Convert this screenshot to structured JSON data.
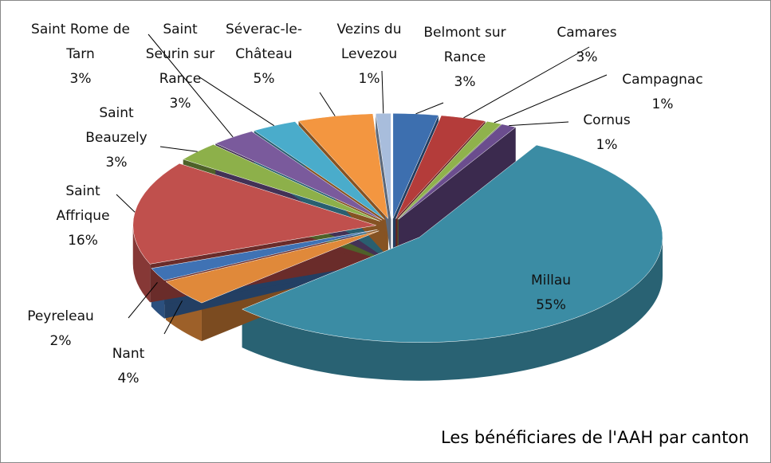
{
  "chart_data": {
    "type": "pie",
    "title": "Les bénéficiares de l'AAH par canton",
    "categories": [
      "Belmont sur Rance",
      "Camares",
      "Campagnac",
      "Cornus",
      "Millau",
      "Nant",
      "Peyreleau",
      "Saint Affrique",
      "Saint Beauzely",
      "Saint Rome de Tarn",
      "Saint Seurin sur Rance",
      "Séverac-le-Château",
      "Vezins du Levezou"
    ],
    "values": [
      3,
      3,
      1,
      1,
      55,
      4,
      2,
      16,
      3,
      3,
      3,
      5,
      1
    ],
    "value_labels": [
      "3%",
      "3%",
      "1%",
      "1%",
      "55%",
      "4%",
      "2%",
      "16%",
      "3%",
      "3%",
      "3%",
      "5%",
      "1%"
    ],
    "colors": [
      "#3d6faf",
      "#b43c3a",
      "#8fb24c",
      "#6b4d8e",
      "#3b8ca4",
      "#e0893a",
      "#3f72b4",
      "#c0504d",
      "#8db04a",
      "#7a5a9c",
      "#4aaccb",
      "#f39640",
      "#a8bddc"
    ]
  }
}
